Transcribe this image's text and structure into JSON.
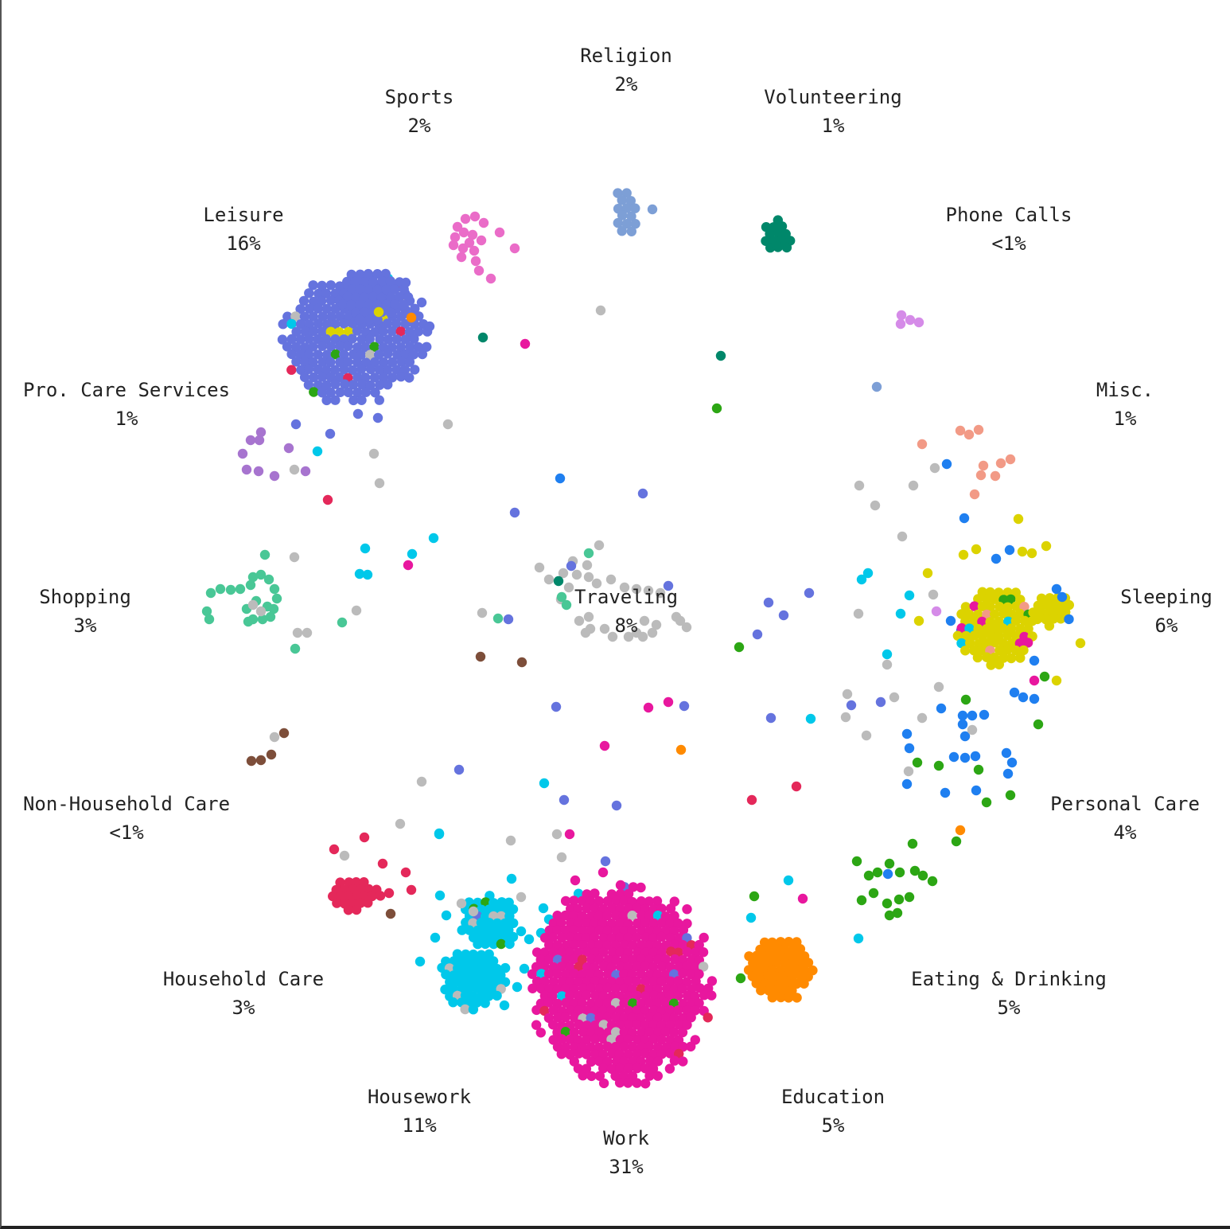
{
  "chart_data": {
    "type": "scatter",
    "title": "",
    "legend": "none",
    "grid": false,
    "categories": [
      {
        "key": "religion",
        "name": "Religion",
        "pct": "2%",
        "color": "#7d9fd6"
      },
      {
        "key": "volunteering",
        "name": "Volunteering",
        "pct": "1%",
        "color": "#00876a"
      },
      {
        "key": "phone",
        "name": "Phone Calls",
        "pct": "<1%",
        "color": "#d58be8"
      },
      {
        "key": "misc",
        "name": "Misc.",
        "pct": "1%",
        "color": "#f29a86"
      },
      {
        "key": "sleeping",
        "name": "Sleeping",
        "pct": "6%",
        "color": "#dcd300"
      },
      {
        "key": "personal",
        "name": "Personal Care",
        "pct": "4%",
        "color": "#1f7ff0"
      },
      {
        "key": "eating",
        "name": "Eating & Drinking",
        "pct": "5%",
        "color": "#2ca614"
      },
      {
        "key": "education",
        "name": "Education",
        "pct": "5%",
        "color": "#ff8a00"
      },
      {
        "key": "work",
        "name": "Work",
        "pct": "31%",
        "color": "#e8179e"
      },
      {
        "key": "housework",
        "name": "Housework",
        "pct": "11%",
        "color": "#00c8ea"
      },
      {
        "key": "household",
        "name": "Household Care",
        "pct": "3%",
        "color": "#e4285a"
      },
      {
        "key": "nonhousehold",
        "name": "Non-Household Care",
        "pct": "<1%",
        "color": "#7d4e3a"
      },
      {
        "key": "shopping",
        "name": "Shopping",
        "pct": "3%",
        "color": "#49c796"
      },
      {
        "key": "procare",
        "name": "Pro. Care Services",
        "pct": "1%",
        "color": "#a774cf"
      },
      {
        "key": "leisure",
        "name": "Leisure",
        "pct": "16%",
        "color": "#6573de"
      },
      {
        "key": "sports",
        "name": "Sports",
        "pct": "2%",
        "color": "#ea6cc8"
      },
      {
        "key": "traveling",
        "name": "Traveling",
        "pct": "8%",
        "color": "#bbbbbb"
      }
    ]
  }
}
